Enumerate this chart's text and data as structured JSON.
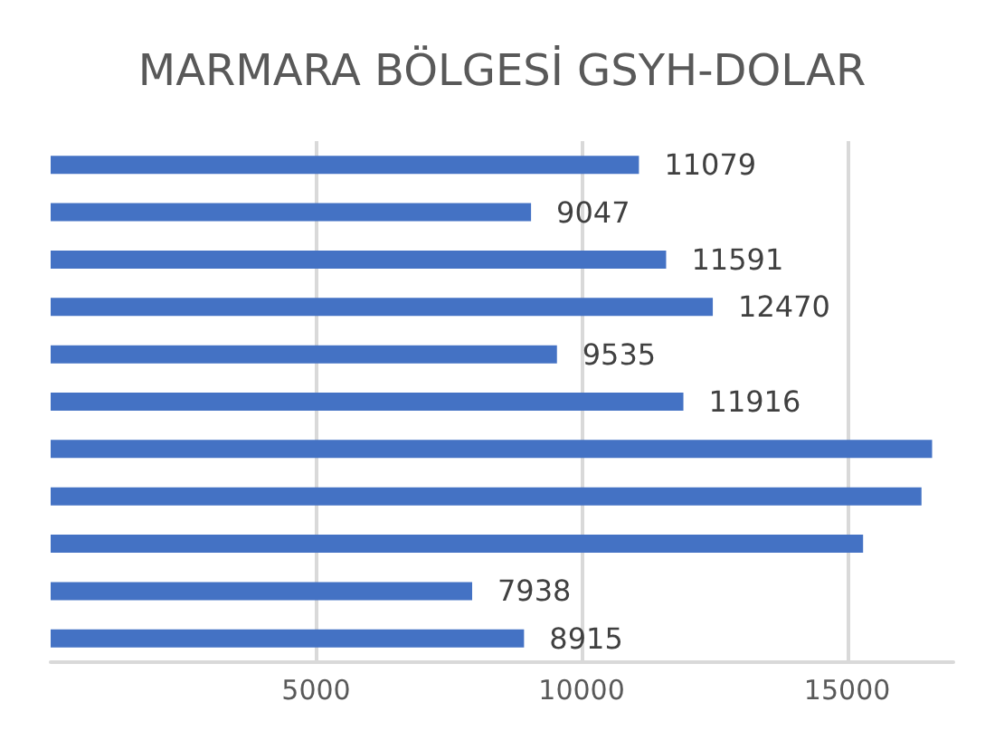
{
  "chart_data": {
    "type": "bar",
    "orientation": "horizontal",
    "title": "MARMARA BÖLGESİ GSYH-DOLAR",
    "categories": [
      null,
      null,
      null,
      null,
      null,
      null,
      null,
      null,
      null,
      null,
      null
    ],
    "values": [
      11079,
      9047,
      11591,
      12470,
      9535,
      11916,
      16600,
      16400,
      15300,
      7938,
      8915
    ],
    "value_labels": [
      "11079",
      "9047",
      "11591",
      "12470",
      "9535",
      "11916",
      null,
      null,
      null,
      "7938",
      "8915"
    ],
    "color": "#4472c4",
    "xlim": [
      0,
      17000
    ],
    "xticks": [
      5000,
      10000,
      15000
    ],
    "grid": "x"
  }
}
